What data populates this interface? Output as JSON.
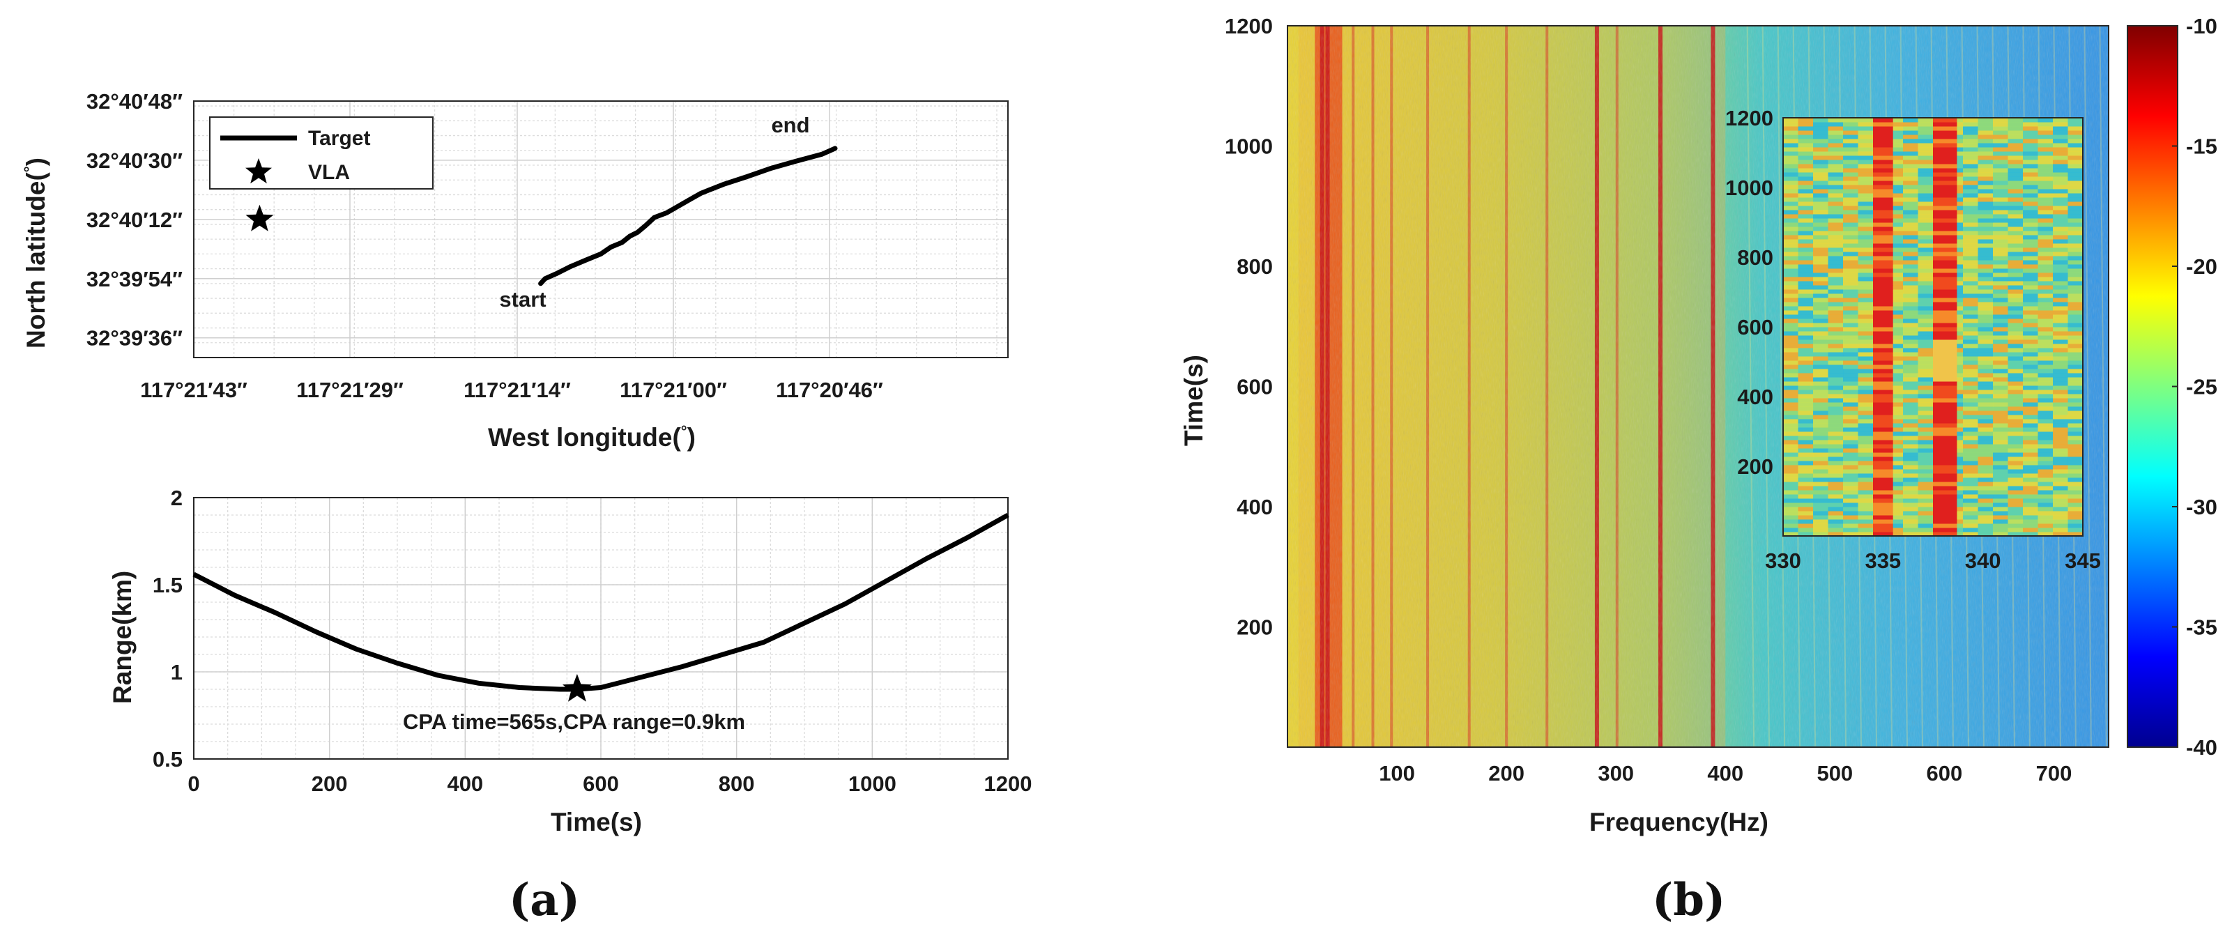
{
  "panel_labels": {
    "a": "(a)",
    "b": "(b)"
  },
  "chart_data": [
    {
      "id": "track",
      "type": "line",
      "xlabel": "West longitude(",
      "xlabel_degree": "°",
      "xlabel_close": ")",
      "ylabel": "North latitude(",
      "ylabel_degree": "°",
      "ylabel_close": ")",
      "xlim": [
        0,
        73
      ],
      "ylim": [
        0,
        78
      ],
      "xticks": [
        {
          "v": 0,
          "label": "117°21′43″"
        },
        {
          "v": 14,
          "label": "117°21′29″"
        },
        {
          "v": 29,
          "label": "117°21′14″"
        },
        {
          "v": 43,
          "label": "117°21′00″"
        },
        {
          "v": 57,
          "label": "117°20′46″"
        }
      ],
      "yticks": [
        {
          "v": 6,
          "label": "32°39′36″"
        },
        {
          "v": 24,
          "label": "32°39′54″"
        },
        {
          "v": 42,
          "label": "32°40′12″"
        },
        {
          "v": 60,
          "label": "32°40′30″"
        },
        {
          "v": 78,
          "label": "32°40′48″"
        }
      ],
      "track": {
        "name": "Target",
        "x": [
          31.1,
          31.5,
          32.5,
          33.8,
          35.2,
          36.5,
          37.4,
          38.4,
          39.1,
          39.8,
          40.5,
          41.3,
          42.4,
          44.4,
          45.5,
          47.6,
          49.6,
          51.8,
          54.0,
          56.3,
          57.5
        ],
        "y": [
          22.5,
          24.0,
          25.5,
          27.7,
          29.7,
          31.5,
          33.6,
          35.0,
          36.9,
          38.1,
          40.1,
          42.6,
          44.0,
          47.9,
          50.0,
          52.8,
          55.0,
          57.6,
          59.7,
          61.8,
          63.6
        ]
      },
      "vla": {
        "name": "VLA",
        "x": 5.9,
        "y": 42
      },
      "annotations": [
        {
          "text": "start",
          "x": 29.5,
          "y": 15.5
        },
        {
          "text": "end",
          "x": 53.5,
          "y": 68.5
        }
      ],
      "legend": "top-left"
    },
    {
      "id": "range",
      "type": "line",
      "xlabel": "Time(s)",
      "ylabel": "Range(km)",
      "xlim": [
        0,
        1200
      ],
      "ylim": [
        0.5,
        2
      ],
      "xticks": [
        0,
        200,
        400,
        600,
        800,
        1000,
        1200
      ],
      "yticks": [
        0.5,
        1,
        1.5,
        2
      ],
      "x": [
        0,
        30,
        60,
        120,
        180,
        240,
        300,
        360,
        420,
        480,
        540,
        565,
        600,
        660,
        720,
        780,
        840,
        900,
        960,
        1020,
        1080,
        1140,
        1200
      ],
      "y": [
        1.56,
        1.5,
        1.44,
        1.34,
        1.23,
        1.13,
        1.05,
        0.98,
        0.935,
        0.91,
        0.9,
        0.9,
        0.91,
        0.97,
        1.03,
        1.1,
        1.17,
        1.28,
        1.39,
        1.52,
        1.65,
        1.77,
        1.9
      ],
      "cpa": {
        "x": 565,
        "y": 0.9
      },
      "annotation": "CPA time=565s,CPA range=0.9km"
    },
    {
      "id": "spectrogram",
      "type": "heatmap",
      "xlabel": "Frequency(Hz)",
      "ylabel": "Time(s)",
      "xlim": [
        0,
        750
      ],
      "ylim": [
        0,
        1200
      ],
      "xticks": [
        100,
        200,
        300,
        400,
        500,
        600,
        700
      ],
      "yticks": [
        200,
        400,
        600,
        800,
        1000,
        1200
      ],
      "colorbar": {
        "min": -40,
        "max": -10,
        "ticks": [
          -10,
          -15,
          -20,
          -25,
          -30,
          -35,
          -40
        ]
      },
      "line_frequencies_hz": [
        31,
        36,
        60,
        78,
        95,
        128,
        166,
        200,
        237,
        282,
        301,
        340,
        388
      ],
      "inset": {
        "xlim": [
          330,
          345
        ],
        "ylim": [
          0,
          1200
        ],
        "xticks": [
          330,
          335,
          340,
          345
        ],
        "yticks": [
          200,
          400,
          600,
          800,
          1000,
          1200
        ],
        "bands_hz": [
          [
            334.5,
            335.5
          ],
          [
            337.5,
            338.7
          ]
        ]
      }
    }
  ]
}
